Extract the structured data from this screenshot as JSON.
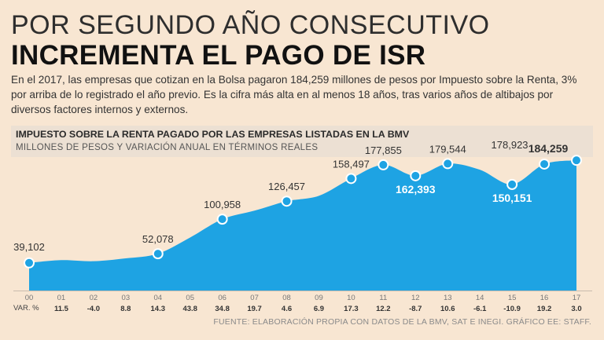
{
  "headline": {
    "line1": "POR SEGUNDO AÑO CONSECUTIVO",
    "line2": "INCREMENTA EL PAGO DE ISR"
  },
  "intro": "En el 2017, las empresas que cotizan en la Bolsa pagaron 184,259 millones de pesos por Impuesto sobre la Renta, 3% por arriba de lo registrado el año previo. Es la cifra más alta en al menos 18 años, tras varios años de altibajos por diversos factores internos y externos.",
  "chart_data": {
    "type": "area",
    "title": "IMPUESTO SOBRE LA RENTA PAGADO POR LAS EMPRESAS LISTADAS EN LA BMV",
    "subtitle": "MILLONES DE PESOS Y VARIACIÓN ANUAL EN TÉRMINOS REALES",
    "x": [
      "00",
      "01",
      "02",
      "03",
      "04",
      "05",
      "06",
      "07",
      "08",
      "09",
      "10",
      "11",
      "12",
      "13",
      "14",
      "15",
      "16",
      "17"
    ],
    "values": [
      39102,
      43000,
      41500,
      45500,
      52078,
      75000,
      100958,
      113000,
      126457,
      134000,
      158497,
      177855,
      162393,
      179544,
      171000,
      150151,
      178923,
      184259
    ],
    "labels": [
      {
        "index": 0,
        "text": "39,102",
        "position": "above",
        "bold": false,
        "inside": false
      },
      {
        "index": 4,
        "text": "52,078",
        "position": "above",
        "bold": false,
        "inside": false
      },
      {
        "index": 6,
        "text": "100,958",
        "position": "above",
        "bold": false,
        "inside": false
      },
      {
        "index": 8,
        "text": "126,457",
        "position": "above",
        "bold": false,
        "inside": false
      },
      {
        "index": 10,
        "text": "158,497",
        "position": "above",
        "bold": false,
        "inside": false
      },
      {
        "index": 11,
        "text": "177,855",
        "position": "above",
        "bold": false,
        "inside": false
      },
      {
        "index": 12,
        "text": "162,393",
        "position": "below",
        "bold": true,
        "inside": true
      },
      {
        "index": 13,
        "text": "179,544",
        "position": "above",
        "bold": false,
        "inside": false
      },
      {
        "index": 15,
        "text": "150,151",
        "position": "below",
        "bold": true,
        "inside": true
      },
      {
        "index": 16,
        "text": "178,923",
        "position": "above-left",
        "bold": false,
        "inside": false
      },
      {
        "index": 17,
        "text": "184,259",
        "position": "above-left",
        "bold": true,
        "inside": false
      }
    ],
    "marked_points": [
      0,
      4,
      6,
      8,
      10,
      11,
      12,
      13,
      15,
      16,
      17
    ],
    "var_label": "VAR. %",
    "var_pct": [
      "",
      "11.5",
      "-4.0",
      "8.8",
      "14.3",
      "43.8",
      "34.8",
      "19.7",
      "4.6",
      "6.9",
      "17.3",
      "12.2",
      "-8.7",
      "10.6",
      "-6.1",
      "-10.9",
      "19.2",
      "3.0"
    ],
    "ylim": [
      0,
      200000
    ]
  },
  "colors": {
    "area": "#1ea3e3",
    "point_fill": "#1ea3e3",
    "point_stroke": "#ffffff",
    "tick_text": "#777777",
    "var_text": "#333333"
  },
  "source": "FUENTE: ELABORACIÓN PROPIA CON DATOS DE LA BMV, SAT E INEGI. GRÁFICO EE: STAFF."
}
